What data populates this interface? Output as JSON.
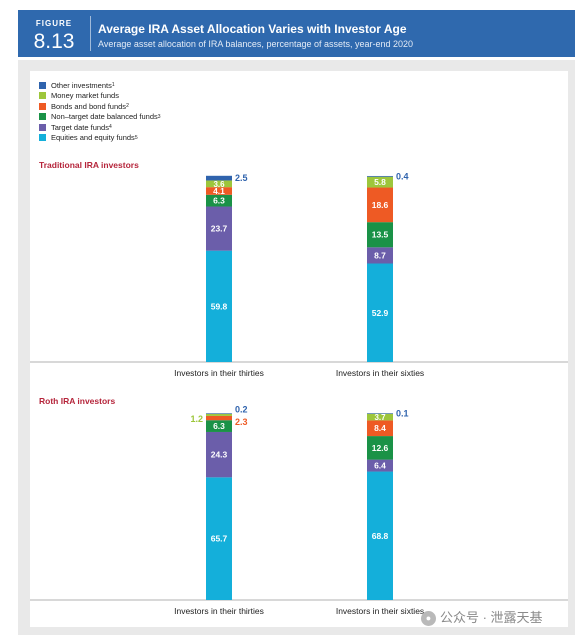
{
  "figure": {
    "label": "FIGURE",
    "number": "8.13",
    "title": "Average IRA Asset Allocation Varies with Investor Age",
    "subtitle": "Average asset allocation of IRA balances, percentage of assets, year-end 2020"
  },
  "legend": [
    {
      "label": "Other investments",
      "sup": "1",
      "color": "#2f63ad"
    },
    {
      "label": "Money market funds",
      "sup": "",
      "color": "#9dc63b"
    },
    {
      "label": "Bonds and bond funds",
      "sup": "2",
      "color": "#ee5a24"
    },
    {
      "label": "Non–target date balanced funds",
      "sup": "3",
      "color": "#1a9247"
    },
    {
      "label": "Target date funds",
      "sup": "4",
      "color": "#6b5eaa"
    },
    {
      "label": "Equities and equity funds",
      "sup": "5",
      "color": "#14afda"
    }
  ],
  "watermark": "公众号 · 泄露天基",
  "chart_data": [
    {
      "type": "bar",
      "stacked": true,
      "title": "Traditional IRA investors",
      "categories": [
        "Investors in their thirties",
        "Investors in their sixties"
      ],
      "series": [
        {
          "name": "Equities and equity funds",
          "color": "#14afda",
          "values": [
            59.8,
            52.9
          ],
          "labels": [
            "59.8",
            "52.9"
          ]
        },
        {
          "name": "Target date funds",
          "color": "#6b5eaa",
          "values": [
            23.7,
            8.7
          ],
          "labels": [
            "23.7",
            "8.7"
          ]
        },
        {
          "name": "Non–target date balanced funds",
          "color": "#1a9247",
          "values": [
            6.3,
            13.5
          ],
          "labels": [
            "6.3",
            "13.5"
          ]
        },
        {
          "name": "Bonds and bond funds",
          "color": "#ee5a24",
          "values": [
            4.1,
            18.6
          ],
          "labels": [
            "4.1",
            "18.6"
          ]
        },
        {
          "name": "Money market funds",
          "color": "#9dc63b",
          "values": [
            3.6,
            5.8
          ],
          "labels": [
            "3.6",
            "5.8"
          ]
        },
        {
          "name": "Other investments",
          "color": "#2f63ad",
          "values": [
            2.5,
            0.4
          ],
          "labels": [
            "2.5",
            "0.4"
          ]
        }
      ],
      "ylim": [
        0,
        100
      ]
    },
    {
      "type": "bar",
      "stacked": true,
      "title": "Roth IRA investors",
      "categories": [
        "Investors in their thirties",
        "Investors in their sixties"
      ],
      "series": [
        {
          "name": "Equities and equity funds",
          "color": "#14afda",
          "values": [
            65.7,
            68.8
          ],
          "labels": [
            "65.7",
            "68.8"
          ]
        },
        {
          "name": "Target date funds",
          "color": "#6b5eaa",
          "values": [
            24.3,
            6.4
          ],
          "labels": [
            "24.3",
            "6.4"
          ]
        },
        {
          "name": "Non–target date balanced funds",
          "color": "#1a9247",
          "values": [
            6.3,
            12.6
          ],
          "labels": [
            "6.3",
            "12.6"
          ]
        },
        {
          "name": "Bonds and bond funds",
          "color": "#ee5a24",
          "values": [
            2.3,
            8.4
          ],
          "labels": [
            "2.3",
            "8.4"
          ]
        },
        {
          "name": "Money market funds",
          "color": "#9dc63b",
          "values": [
            1.2,
            3.7
          ],
          "labels": [
            "1.2",
            "3.7"
          ]
        },
        {
          "name": "Other investments",
          "color": "#2f63ad",
          "values": [
            0.2,
            0.1
          ],
          "labels": [
            "0.2",
            "0.1"
          ]
        }
      ],
      "ylim": [
        0,
        100
      ]
    }
  ]
}
